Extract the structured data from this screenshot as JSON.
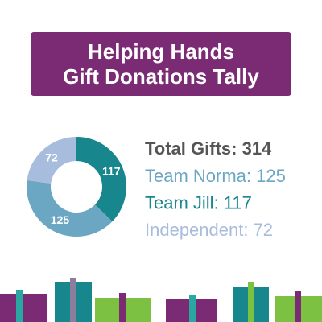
{
  "chart_data": {
    "type": "donut",
    "title": [
      "Helping Hands",
      "Gift Donations Tally"
    ],
    "categories": [
      "Team Jill",
      "Team Norma",
      "Independent"
    ],
    "values": [
      117,
      125,
      72
    ],
    "colors": [
      "#17868d",
      "#6ba6c3",
      "#a8bcdd"
    ],
    "total_label": "Total Gifts: 314",
    "legend": [
      "Team Norma: 125",
      "Team Jill: 117",
      "Independent: 72"
    ],
    "legend_colors": [
      "#6ba6c3",
      "#17868d",
      "#a8bcdd"
    ]
  }
}
